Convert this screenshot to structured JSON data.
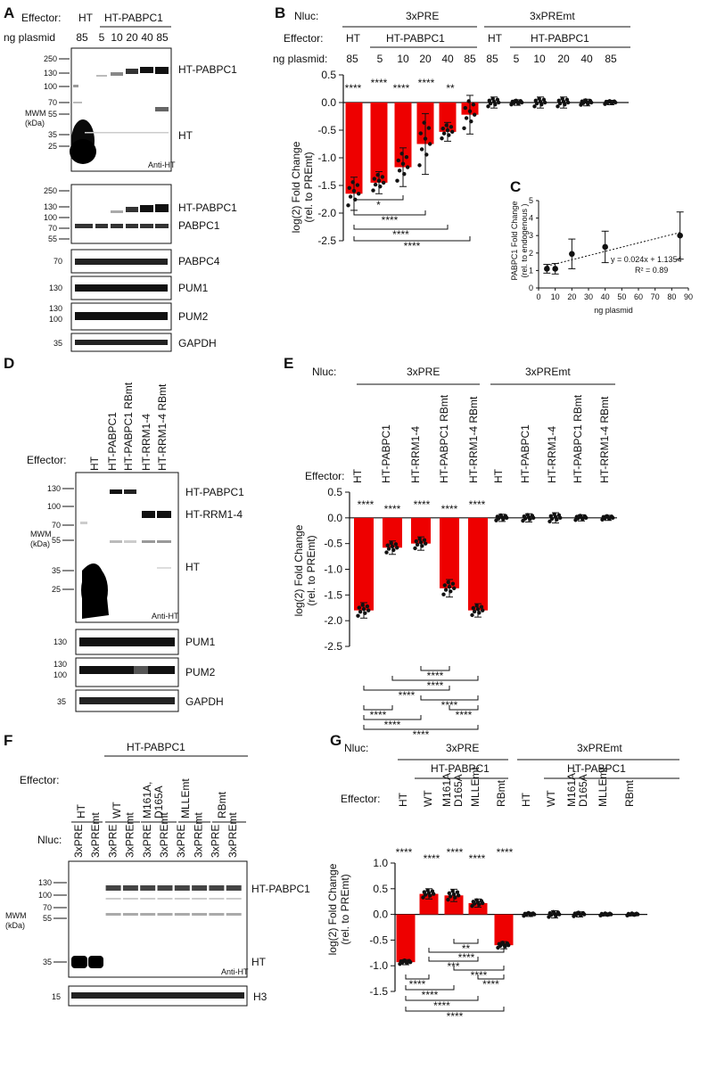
{
  "panels": {
    "A": "A",
    "B": "B",
    "C": "C",
    "D": "D",
    "E": "E",
    "F": "F",
    "G": "G"
  },
  "common": {
    "effector": "Effector:",
    "nluc": "Nluc:",
    "ng_plasmid": "ng plasmid:",
    "ng_plasmid_a": "ng plasmid",
    "mwm": "MWM",
    "kda": "(kDa)",
    "ht": "HT",
    "ht_pabpc1": "HT-PABPC1",
    "anti_ht": "Anti-HT",
    "pre": "3xPRE",
    "premt": "3xPREmt",
    "stars4": "****",
    "stars3": "***",
    "stars2": "**",
    "stars1": "*",
    "ylabel1": "log(2) Fold Change",
    "ylabel2": "(rel. to PREmt)"
  },
  "A": {
    "effector_label": "Effector:",
    "effectors": [
      "HT",
      "HT-PABPC1"
    ],
    "amounts": [
      "85",
      "5",
      "10",
      "20",
      "40",
      "85"
    ],
    "blot1_markers": [
      "250",
      "130",
      "100",
      "70",
      "55",
      "35",
      "25"
    ],
    "blot1_bands": [
      "HT-PABPC1",
      "HT"
    ],
    "blot2_markers": [
      "250",
      "130",
      "100",
      "70",
      "55"
    ],
    "blot2_bands": [
      "HT-PABPC1",
      "PABPC1"
    ],
    "strips": [
      {
        "marker": "70",
        "label": "PABPC4"
      },
      {
        "marker": "130",
        "label": "PUM1"
      },
      {
        "marker": "130/100",
        "label": "PUM2"
      },
      {
        "marker": "35",
        "label": "GAPDH"
      }
    ],
    "strip_markers_pum2": [
      "130",
      "100"
    ]
  },
  "B": {
    "groups": [
      "3xPRE",
      "3xPREmt"
    ],
    "effector_cols": [
      "HT",
      "HT-PABPC1",
      "HT",
      "HT-PABPC1"
    ],
    "amounts": [
      "85",
      "5",
      "10",
      "20",
      "40",
      "85",
      "85",
      "5",
      "10",
      "20",
      "40",
      "85"
    ],
    "sig_top": [
      "****",
      "****",
      "****",
      "****",
      "**"
    ],
    "sig_brackets": [
      "*",
      "****",
      "****",
      "****"
    ]
  },
  "C": {
    "equation": "y = 0.024x + 1.1354",
    "r2": "R² = 0.89",
    "ylabel1": "PABPC1 Fold Change",
    "ylabel2": "(rel. to endogenous )",
    "xlabel": "ng plasmid"
  },
  "D": {
    "lanes": [
      "HT",
      "HT-PABPC1",
      "HT-PABPC1 RBmt",
      "HT-RRM1-4",
      "HT-RRM1-4 RBmt"
    ],
    "markers": [
      "130",
      "100",
      "70",
      "55",
      "35",
      "25"
    ],
    "bands": [
      "HT-PABPC1",
      "HT-RRM1-4",
      "HT"
    ],
    "strips": [
      {
        "marker": "130",
        "label": "PUM1"
      },
      {
        "marker": "130/100",
        "label": "PUM2"
      },
      {
        "marker": "35",
        "label": "GAPDH"
      }
    ]
  },
  "E": {
    "groups": [
      "3xPRE",
      "3xPREmt"
    ],
    "lanes": [
      "HT",
      "HT-PABPC1",
      "HT-RRM1-4",
      "HT-PABPC1 RBmt",
      "HT-RRM1-4 RBmt",
      "HT",
      "HT-PABPC1",
      "HT-RRM1-4",
      "HT-PABPC1 RBmt",
      "HT-RRM1-4 RBmt"
    ]
  },
  "F": {
    "header": "HT-PABPC1",
    "effector_groups": [
      "HT",
      "WT",
      "M161A, D165A",
      "MLLEmt",
      "RBmt"
    ],
    "nluc_lanes": [
      "3xPRE",
      "3xPREmt",
      "3xPRE",
      "3xPREmt",
      "3xPRE",
      "3xPREmt",
      "3xPRE",
      "3xPREmt",
      "3xPRE",
      "3xPREmt"
    ],
    "markers": [
      "130",
      "100",
      "70",
      "55",
      "35"
    ],
    "bands": [
      "HT-PABPC1",
      "HT"
    ],
    "strip": {
      "marker": "15",
      "label": "H3"
    }
  },
  "G": {
    "groups": [
      "3xPRE",
      "3xPREmt"
    ],
    "sub_header": "HT-PABPC1",
    "lanes": [
      "HT",
      "WT",
      "M161A, D165A",
      "MLLEmt",
      "RBmt",
      "HT",
      "WT",
      "M161A, D165A",
      "MLLEmt",
      "RBmt"
    ]
  },
  "chart_data": [
    {
      "type": "bar",
      "panel": "B",
      "categories": [
        "HT 85",
        "HT-PABPC1 5",
        "HT-PABPC1 10",
        "HT-PABPC1 20",
        "HT-PABPC1 40",
        "HT-PABPC1 85",
        "HT 85 (PREmt)",
        "HT-PABPC1 5 (PREmt)",
        "HT-PABPC1 10 (PREmt)",
        "HT-PABPC1 20 (PREmt)",
        "HT-PABPC1 40 (PREmt)",
        "HT-PABPC1 85 (PREmt)"
      ],
      "values": [
        -1.65,
        -1.45,
        -1.17,
        -0.75,
        -0.53,
        -0.22,
        0.0,
        0.0,
        0.0,
        0.0,
        0.0,
        0.0
      ],
      "errors": [
        0.3,
        0.2,
        0.35,
        0.55,
        0.17,
        0.35,
        0.1,
        0.05,
        0.1,
        0.1,
        0.06,
        0.04
      ],
      "ylim": [
        -2.5,
        0.5
      ],
      "yticks": [
        "0.5",
        "0.0",
        "-0.5",
        "-1.0",
        "-1.5",
        "-2.0",
        "-2.5"
      ]
    },
    {
      "type": "scatter",
      "panel": "C",
      "x": [
        5,
        10,
        20,
        40,
        85
      ],
      "y": [
        1.1,
        1.1,
        1.95,
        2.35,
        3.0
      ],
      "errors": [
        0.25,
        0.3,
        0.85,
        0.9,
        1.35
      ],
      "trendline": {
        "slope": 0.024,
        "intercept": 1.1354
      },
      "xlim": [
        0,
        90
      ],
      "ylim": [
        0,
        5
      ],
      "xticks": [
        "0",
        "10",
        "20",
        "30",
        "40",
        "50",
        "60",
        "70",
        "80",
        "90"
      ],
      "yticks": [
        "0",
        "1",
        "2",
        "3",
        "4",
        "5"
      ]
    },
    {
      "type": "bar",
      "panel": "E",
      "categories": [
        "HT",
        "HT-PABPC1",
        "HT-RRM1-4",
        "HT-PABPC1 RBmt",
        "HT-RRM1-4 RBmt",
        "HT (PREmt)",
        "HT-PABPC1 (PREmt)",
        "HT-RRM1-4 (PREmt)",
        "HT-PABPC1 RBmt (PREmt)",
        "HT-RRM1-4 RBmt (PREmt)"
      ],
      "values": [
        -1.8,
        -0.58,
        -0.5,
        -1.37,
        -1.8,
        0.0,
        0.0,
        0.0,
        0.0,
        0.0
      ],
      "errors": [
        0.15,
        0.13,
        0.13,
        0.17,
        0.13,
        0.07,
        0.08,
        0.1,
        0.06,
        0.05
      ],
      "ylim": [
        -2.5,
        0.5
      ],
      "yticks": [
        "0.5",
        "0.0",
        "-0.5",
        "-1.0",
        "-1.5",
        "-2.0",
        "-2.5"
      ]
    },
    {
      "type": "bar",
      "panel": "G",
      "categories": [
        "HT",
        "WT",
        "M161A, D165A",
        "MLLEmt",
        "RBmt",
        "HT (PREmt)",
        "WT (PREmt)",
        "M161A, D165A (PREmt)",
        "MLLEmt (PREmt)",
        "RBmt (PREmt)"
      ],
      "values": [
        -0.93,
        0.4,
        0.37,
        0.22,
        -0.6,
        0.0,
        0.0,
        0.0,
        0.0,
        0.0
      ],
      "errors": [
        0.05,
        0.1,
        0.12,
        0.08,
        0.07,
        0.04,
        0.07,
        0.05,
        0.03,
        0.03
      ],
      "ylim": [
        -1.5,
        1.0
      ],
      "yticks": [
        "1.0",
        "0.5",
        "0.0",
        "-0.5",
        "-1.0",
        "-1.5"
      ]
    }
  ]
}
